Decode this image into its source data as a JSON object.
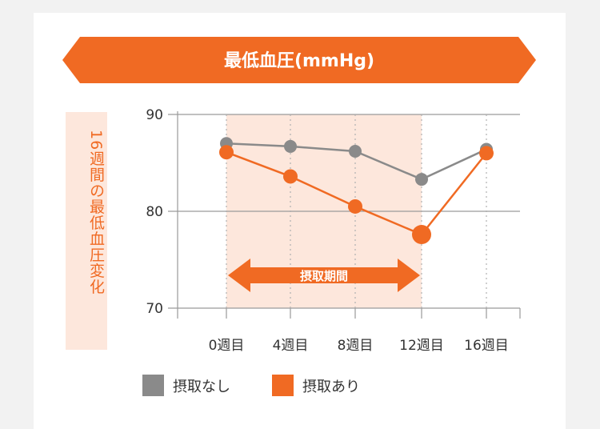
{
  "colors": {
    "accent": "#f06a23",
    "gray_series": "#8a8a8a",
    "period_fill": "#fde7dc",
    "ylabel_bg": "#fde7dc"
  },
  "chart_data": {
    "type": "line",
    "title": "最低血圧(mmHg)",
    "ylabel": "16週間の最低血圧変化",
    "categories": [
      "0週目",
      "4週目",
      "8週目",
      "12週目",
      "16週目"
    ],
    "yticks": [
      70,
      80,
      90
    ],
    "ylim": [
      70,
      90
    ],
    "grid": true,
    "legend_position": "bottom",
    "series": [
      {
        "name": "摂取なし",
        "color": "#8a8a8a",
        "values": [
          87.0,
          86.7,
          86.2,
          83.3,
          86.4
        ]
      },
      {
        "name": "摂取あり",
        "color": "#f06a23",
        "values": [
          86.1,
          83.6,
          80.5,
          77.6,
          86.0
        ]
      }
    ],
    "period": {
      "label": "摂取期間",
      "from": 0,
      "to": 3
    }
  }
}
